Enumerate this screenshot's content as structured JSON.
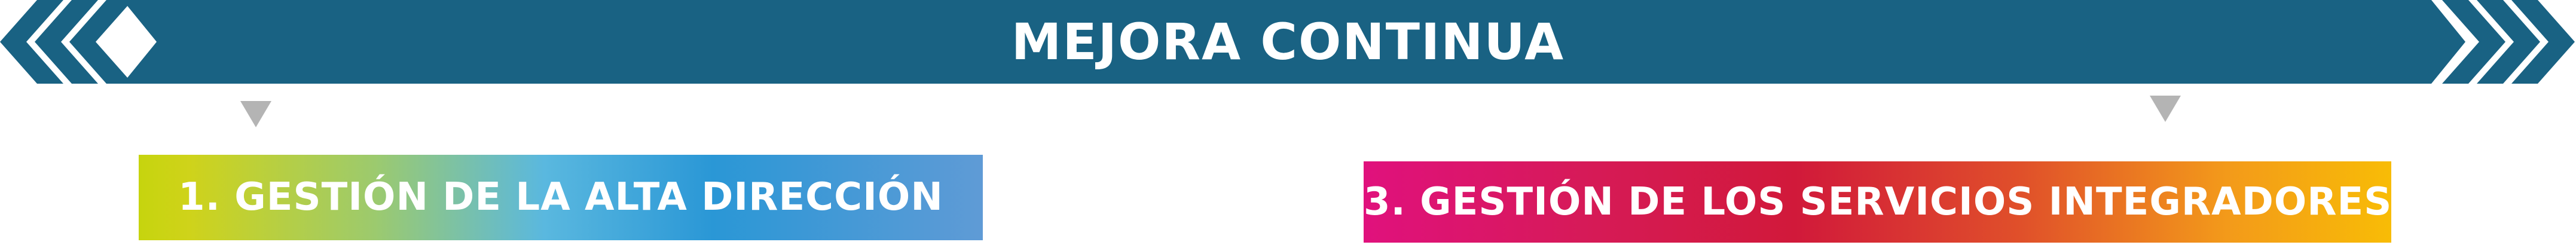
{
  "banner": {
    "title": "MEJORA CONTINUA"
  },
  "boxes": {
    "box1_label": "1. GESTIÓN DE LA ALTA DIRECCIÓN",
    "box3_label": "3. GESTIÓN DE LOS SERVICIOS INTEGRADORES"
  },
  "colors": {
    "banner_fill": "#196283",
    "pointer_fill": "#b4b4b4",
    "box1_gradient": [
      "#c6d40e",
      "#9cca6e",
      "#5ab8df",
      "#2a97d6",
      "#5f9bd6"
    ],
    "box3_gradient": [
      "#e0117d",
      "#d1193a",
      "#e0502a",
      "#f39a1a",
      "#f8bc06"
    ]
  },
  "icons": {
    "left_chevrons": "triple-chevron-left-icon",
    "right_chevrons": "triple-chevron-right-icon",
    "pointers": "triangle-down-icon"
  }
}
